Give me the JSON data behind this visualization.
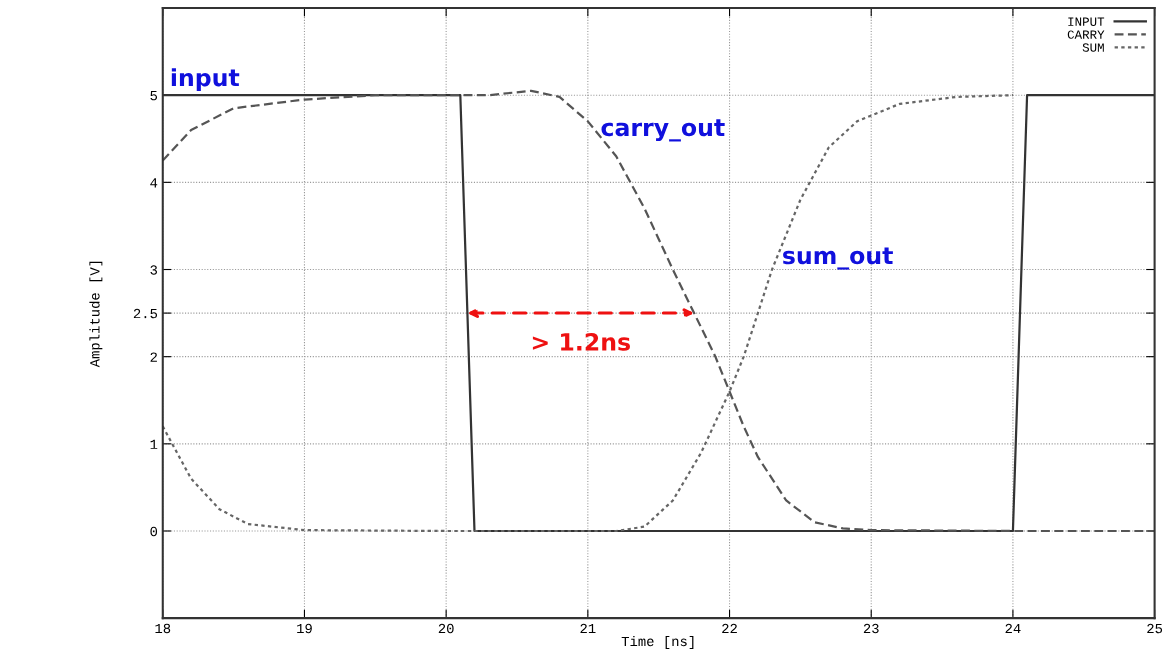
{
  "chart_data": {
    "type": "line",
    "xlabel": "Time [ns]",
    "ylabel": "Amplitude [V]",
    "xlim": [
      18,
      25
    ],
    "xticks": [
      18,
      19,
      20,
      21,
      22,
      23,
      24,
      25
    ],
    "ylim": [
      -1,
      6
    ],
    "yticks": [
      0,
      1,
      2,
      2.5,
      3,
      4,
      5
    ],
    "grid": true,
    "legend": "top right",
    "series": [
      {
        "name": "INPUT",
        "color": "#333333",
        "line_style": "solid",
        "x": [
          18,
          20.1,
          20.2,
          24.0,
          24.1,
          25
        ],
        "values": [
          5,
          5,
          0,
          0,
          5,
          5
        ]
      },
      {
        "name": "CARRY",
        "color": "#555555",
        "line_style": "dashed",
        "x": [
          18,
          18.2,
          18.5,
          19,
          19.5,
          20,
          20.3,
          20.6,
          20.8,
          21,
          21.2,
          21.4,
          21.6,
          21.75,
          21.9,
          22,
          22.1,
          22.2,
          22.4,
          22.6,
          22.8,
          23,
          24,
          25
        ],
        "values": [
          4.25,
          4.6,
          4.85,
          4.95,
          5,
          5,
          5,
          5.05,
          4.98,
          4.7,
          4.3,
          3.7,
          3.0,
          2.5,
          2.0,
          1.6,
          1.2,
          0.85,
          0.35,
          0.1,
          0.03,
          0.01,
          0,
          0
        ]
      },
      {
        "name": "SUM",
        "color": "#666666",
        "line_style": "dotted",
        "x": [
          18,
          18.1,
          18.2,
          18.4,
          18.6,
          19,
          20,
          21.2,
          21.4,
          21.6,
          21.8,
          22,
          22.1,
          22.2,
          22.3,
          22.5,
          22.7,
          22.9,
          23.2,
          23.6,
          24
        ],
        "values": [
          1.2,
          0.9,
          0.6,
          0.25,
          0.08,
          0.01,
          0,
          0,
          0.05,
          0.35,
          0.9,
          1.6,
          2.0,
          2.5,
          3.0,
          3.8,
          4.4,
          4.7,
          4.9,
          4.98,
          5
        ]
      }
    ],
    "annotations": [
      {
        "text": "input",
        "x": 18.05,
        "y": 5
      },
      {
        "text": "carry_out",
        "x": 21.05,
        "y": 4.6
      },
      {
        "text": "sum_out",
        "x": 22.33,
        "y": 3.13
      },
      {
        "text": "> 1.2ns",
        "x": 21.75,
        "y": 2.5
      }
    ]
  }
}
